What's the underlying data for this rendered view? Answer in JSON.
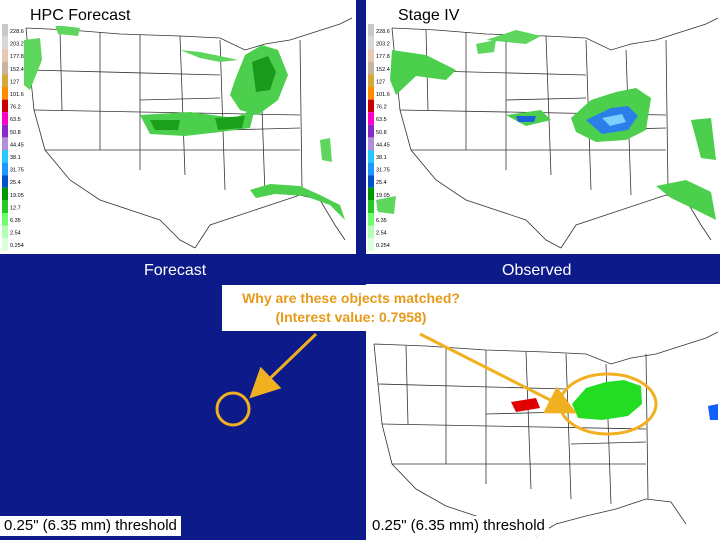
{
  "panels": {
    "top_left_title": "HPC Forecast",
    "top_right_title": "Stage IV",
    "bottom_left_label": "Forecast",
    "bottom_right_label": "Observed"
  },
  "colorbar": {
    "ticks": [
      "228.6",
      "203.2",
      "177.8",
      "152.4",
      "127",
      "101.6",
      "76.2",
      "63.5",
      "50.8",
      "44.45",
      "38.1",
      "31.75",
      "25.4",
      "19.05",
      "12.7",
      "6.35",
      "2.54",
      "0.254"
    ],
    "colors": [
      "#c8c8c8",
      "#d8d8d8",
      "#e6c8b4",
      "#c8b4a0",
      "#d4a83c",
      "#ff8c00",
      "#c80000",
      "#ff00c8",
      "#8c28c8",
      "#b48cdc",
      "#28c8ff",
      "#1e96ff",
      "#0050c8",
      "#009600",
      "#28c828",
      "#6eff6e",
      "#b4ffb4",
      "#dcffdc"
    ]
  },
  "callout": {
    "line1": "Why are these objects matched?",
    "line2": "(Interest value: 0.7958)"
  },
  "threshold": {
    "left": "0.25\" (6.35 mm) threshold",
    "right": "0.25\" (6.35 mm) threshold"
  },
  "colors": {
    "background": "#0c1a8a",
    "annotation": "#f0b020",
    "match_object_observed": "#22dd22",
    "other_object": "#e00000"
  }
}
